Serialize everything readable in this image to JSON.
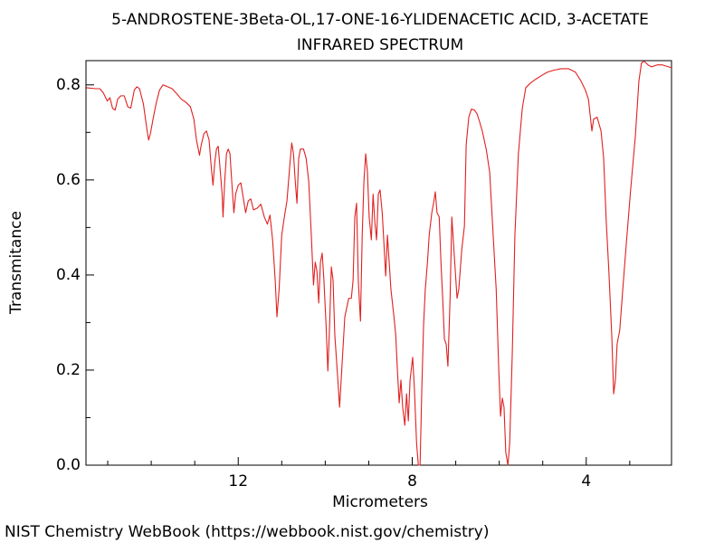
{
  "chart_data": {
    "type": "line",
    "title": "5-ANDROSTENE-3Beta-OL,17-ONE-16-YLIDENACETIC ACID, 3-ACETATE",
    "subtitle": "INFRARED SPECTRUM",
    "x_label": "Micrometers",
    "y_label": "Transmitance",
    "source": "NIST Chemistry WebBook (https://webbook.nist.gov/chemistry)",
    "xlim": [
      15.5,
      2.04
    ],
    "ylim": [
      0,
      0.851
    ],
    "xticks": [
      12,
      8,
      4
    ],
    "xminor": [
      15,
      14,
      13,
      11,
      10,
      9,
      7,
      6,
      5,
      3
    ],
    "yticks": [
      {
        "value": 0,
        "label": "0.0"
      },
      {
        "value": 0.2,
        "label": "0.2"
      },
      {
        "value": 0.4,
        "label": "0.4"
      },
      {
        "value": 0.6,
        "label": "0.6"
      },
      {
        "value": 0.8,
        "label": "0.8"
      }
    ],
    "yminor": [
      0.1,
      0.3,
      0.5,
      0.7
    ],
    "grid": false,
    "color": "#e02020",
    "x": [
      15.49,
      15.28,
      15.18,
      15.1,
      15.01,
      14.95,
      14.89,
      14.83,
      14.77,
      14.7,
      14.62,
      14.54,
      14.47,
      14.39,
      14.33,
      14.27,
      14.18,
      14.1,
      14.06,
      14.02,
      13.95,
      13.89,
      13.81,
      13.73,
      13.62,
      13.52,
      13.41,
      13.31,
      13.21,
      13.1,
      13.02,
      12.96,
      12.89,
      12.85,
      12.79,
      12.73,
      12.67,
      12.62,
      12.58,
      12.54,
      12.5,
      12.46,
      12.42,
      12.37,
      12.35,
      12.31,
      12.27,
      12.23,
      12.19,
      12.15,
      12.1,
      12.06,
      12.0,
      11.94,
      11.88,
      11.83,
      11.77,
      11.71,
      11.65,
      11.56,
      11.48,
      11.4,
      11.33,
      11.27,
      11.21,
      11.15,
      11.11,
      11.06,
      11.0,
      10.94,
      10.88,
      10.81,
      10.77,
      10.73,
      10.69,
      10.65,
      10.61,
      10.57,
      10.5,
      10.44,
      10.38,
      10.32,
      10.27,
      10.23,
      10.19,
      10.15,
      10.11,
      10.07,
      10.03,
      9.98,
      9.94,
      9.9,
      9.86,
      9.82,
      9.78,
      9.71,
      9.67,
      9.61,
      9.55,
      9.46,
      9.4,
      9.36,
      9.32,
      9.28,
      9.24,
      9.19,
      9.15,
      9.11,
      9.07,
      9.03,
      8.99,
      8.94,
      8.9,
      8.86,
      8.82,
      8.78,
      8.74,
      8.69,
      8.65,
      8.61,
      8.57,
      8.53,
      8.49,
      8.42,
      8.38,
      8.34,
      8.3,
      8.26,
      8.22,
      8.17,
      8.13,
      8.09,
      8.05,
      7.99,
      7.95,
      7.9,
      7.86,
      7.82,
      7.78,
      7.74,
      7.7,
      7.65,
      7.61,
      7.55,
      7.51,
      7.47,
      7.43,
      7.38,
      7.34,
      7.3,
      7.26,
      7.22,
      7.18,
      7.13,
      7.09,
      7.05,
      7.01,
      6.97,
      6.93,
      6.86,
      6.8,
      6.76,
      6.7,
      6.64,
      6.57,
      6.51,
      6.45,
      6.39,
      6.3,
      6.22,
      6.14,
      6.07,
      6.01,
      5.97,
      5.93,
      5.89,
      5.85,
      5.8,
      5.76,
      5.7,
      5.64,
      5.56,
      5.47,
      5.39,
      5.28,
      5.16,
      5.04,
      4.89,
      4.74,
      4.58,
      4.41,
      4.25,
      4.12,
      4.02,
      3.95,
      3.87,
      3.83,
      3.75,
      3.66,
      3.6,
      3.54,
      3.48,
      3.41,
      3.37,
      3.33,
      3.29,
      3.23,
      3.16,
      3.08,
      2.98,
      2.87,
      2.79,
      2.73,
      2.67,
      2.58,
      2.5,
      2.37,
      2.25,
      2.04
    ],
    "values": [
      0.794,
      0.792,
      0.792,
      0.783,
      0.766,
      0.773,
      0.751,
      0.747,
      0.77,
      0.777,
      0.777,
      0.754,
      0.751,
      0.789,
      0.796,
      0.792,
      0.76,
      0.707,
      0.684,
      0.697,
      0.732,
      0.76,
      0.789,
      0.8,
      0.796,
      0.792,
      0.781,
      0.77,
      0.764,
      0.754,
      0.728,
      0.684,
      0.652,
      0.674,
      0.697,
      0.703,
      0.684,
      0.627,
      0.589,
      0.636,
      0.665,
      0.671,
      0.627,
      0.57,
      0.522,
      0.598,
      0.655,
      0.665,
      0.655,
      0.598,
      0.531,
      0.57,
      0.589,
      0.594,
      0.56,
      0.531,
      0.556,
      0.56,
      0.537,
      0.541,
      0.549,
      0.522,
      0.507,
      0.526,
      0.474,
      0.389,
      0.312,
      0.37,
      0.484,
      0.522,
      0.556,
      0.636,
      0.678,
      0.655,
      0.598,
      0.551,
      0.646,
      0.665,
      0.665,
      0.646,
      0.598,
      0.484,
      0.379,
      0.427,
      0.408,
      0.341,
      0.427,
      0.446,
      0.389,
      0.293,
      0.198,
      0.293,
      0.417,
      0.389,
      0.274,
      0.179,
      0.122,
      0.217,
      0.312,
      0.351,
      0.351,
      0.389,
      0.522,
      0.551,
      0.389,
      0.303,
      0.484,
      0.598,
      0.655,
      0.617,
      0.522,
      0.474,
      0.57,
      0.512,
      0.474,
      0.57,
      0.579,
      0.531,
      0.465,
      0.398,
      0.484,
      0.427,
      0.37,
      0.312,
      0.274,
      0.198,
      0.131,
      0.179,
      0.122,
      0.084,
      0.15,
      0.093,
      0.179,
      0.227,
      0.16,
      0.046,
      0,
      0,
      0.16,
      0.293,
      0.37,
      0.427,
      0.484,
      0.531,
      0.551,
      0.575,
      0.531,
      0.522,
      0.427,
      0.351,
      0.265,
      0.255,
      0.208,
      0.351,
      0.522,
      0.465,
      0.408,
      0.351,
      0.37,
      0.455,
      0.503,
      0.674,
      0.732,
      0.749,
      0.747,
      0.739,
      0.722,
      0.703,
      0.665,
      0.617,
      0.484,
      0.37,
      0.198,
      0.103,
      0.141,
      0.122,
      0.027,
      0,
      0.046,
      0.236,
      0.484,
      0.655,
      0.751,
      0.794,
      0.804,
      0.812,
      0.819,
      0.827,
      0.831,
      0.834,
      0.834,
      0.827,
      0.808,
      0.789,
      0.77,
      0.703,
      0.728,
      0.732,
      0.703,
      0.646,
      0.512,
      0.408,
      0.265,
      0.15,
      0.179,
      0.255,
      0.284,
      0.37,
      0.465,
      0.579,
      0.693,
      0.808,
      0.846,
      0.85,
      0.842,
      0.838,
      0.842,
      0.842,
      0.836
    ]
  }
}
